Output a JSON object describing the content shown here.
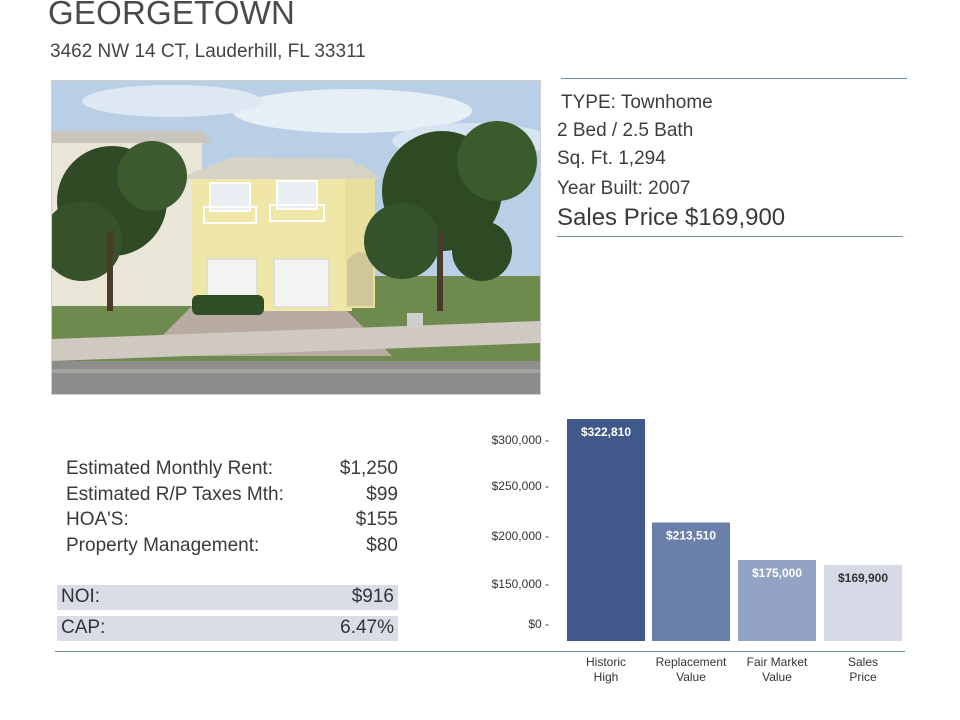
{
  "header": {
    "title": "GEORGETOWN",
    "address": "3462 NW 14 CT, Lauderhill, FL 33311"
  },
  "specs": {
    "type": "TYPE: Townhome",
    "beds_baths": "2 Bed / 2.5 Bath",
    "sqft": "Sq. Ft. 1,294",
    "year_built": "Year Built:  2007",
    "sales_price": "Sales Price $169,900"
  },
  "expenses": [
    {
      "label": "Estimated Monthly Rent:",
      "value": "$1,250"
    },
    {
      "label": "Estimated R/P Taxes Mth:",
      "value": "$99"
    },
    {
      "label": "HOA'S:",
      "value": "$155"
    },
    {
      "label": "Property Management:",
      "value": "$80"
    }
  ],
  "summary": {
    "noi_label": "NOI:",
    "noi_value": "$916",
    "cap_label": "CAP:",
    "cap_value": "6.47%"
  },
  "colors": {
    "bar_historic": "#41598a",
    "bar_replacement": "#6a7faa",
    "bar_fmv": "#93a3c4",
    "bar_sales": "#d5dae6",
    "rule": "#6e8fb1"
  },
  "chart_data": {
    "type": "bar",
    "categories": [
      [
        "Historic",
        "High"
      ],
      [
        "Replacement",
        "Value"
      ],
      [
        "Fair Market",
        "Value"
      ],
      [
        "Sales",
        "Price"
      ]
    ],
    "values": [
      322810,
      213510,
      175000,
      169900
    ],
    "data_labels": [
      "$322,810",
      "$213,510",
      "$175,000",
      "$169,900"
    ],
    "y_ticks": [
      "$300,000 -",
      "$250,000 -",
      "$200,000 -",
      "$150,000 -",
      "$0 -"
    ],
    "legend": "none",
    "grid": false
  }
}
